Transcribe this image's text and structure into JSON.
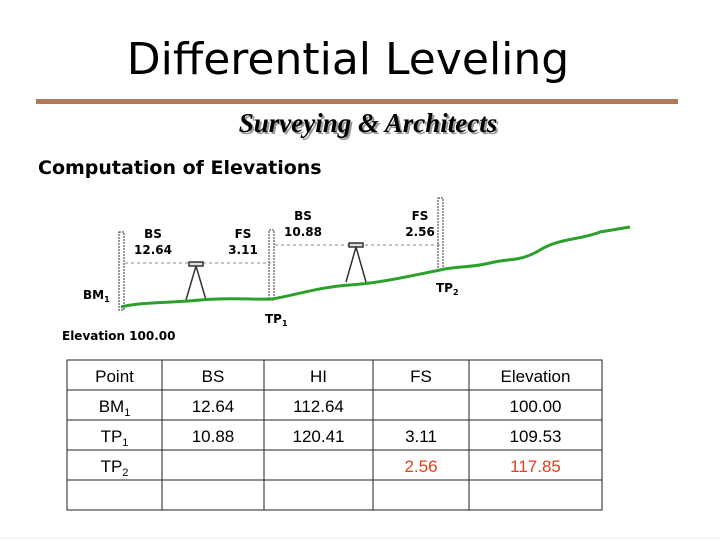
{
  "header": {
    "title": "Differential Leveling",
    "subtitle": "Surveying & Architects",
    "heading": "Computation of Elevations"
  },
  "diagram": {
    "readings": [
      {
        "kind": "BS",
        "value": "12.64"
      },
      {
        "kind": "FS",
        "value": "3.11"
      },
      {
        "kind": "BS",
        "value": "10.88"
      },
      {
        "kind": "FS",
        "value": "2.56"
      }
    ],
    "stations": [
      {
        "label": "BM",
        "sub": "1"
      },
      {
        "label": "TP",
        "sub": "1"
      },
      {
        "label": "TP",
        "sub": "2"
      }
    ],
    "elevation_note": "Elevation 100.00",
    "ground_color": "#2ca02c"
  },
  "table": {
    "columns": [
      "Point",
      "BS",
      "HI",
      "FS",
      "Elevation"
    ],
    "rows": [
      {
        "point": {
          "label": "BM",
          "sub": "1"
        },
        "bs": "12.64",
        "hi": "112.64",
        "elevation": "100.00"
      },
      {
        "point": {
          "label": "TP",
          "sub": "1"
        },
        "bs": "10.88",
        "hi": "120.41",
        "fs": "3.11",
        "elevation": "109.53"
      },
      {
        "point": {
          "label": "TP",
          "sub": "2"
        },
        "fs": "2.56",
        "elevation": "117.85",
        "color": "#e0401f"
      }
    ]
  }
}
